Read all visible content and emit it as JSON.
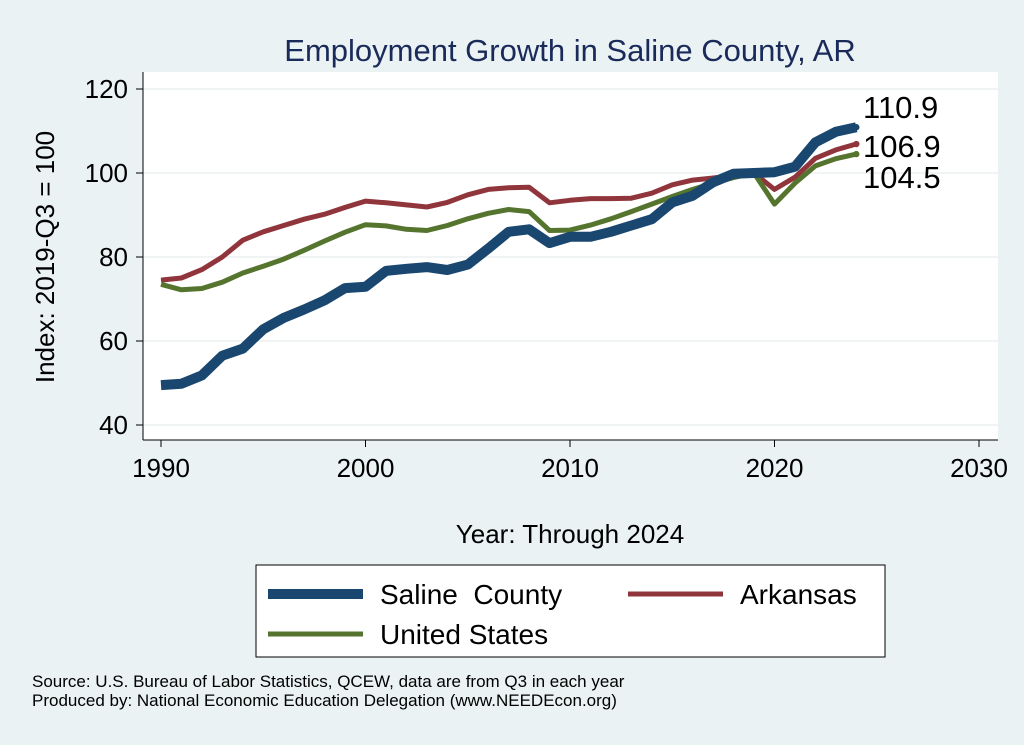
{
  "chart_data": {
    "type": "line",
    "title": "Employment Growth in Saline County, AR",
    "xlabel": "Year: Through 2024",
    "ylabel": "Index: 2019-Q3 = 100",
    "xlim": [
      1990,
      2030
    ],
    "ylim": [
      40,
      120
    ],
    "xticks": [
      1990,
      2000,
      2010,
      2020,
      2030
    ],
    "yticks": [
      40,
      60,
      80,
      100,
      120
    ],
    "grid": true,
    "legend_position": "bottom",
    "series": [
      {
        "name": "Saline  County",
        "color": "#1a476f",
        "end_label": "110.9",
        "x": [
          1990,
          1991,
          1992,
          1993,
          1994,
          1995,
          1996,
          1997,
          1998,
          1999,
          2000,
          2001,
          2002,
          2003,
          2004,
          2005,
          2006,
          2007,
          2008,
          2009,
          2010,
          2011,
          2012,
          2013,
          2014,
          2015,
          2016,
          2017,
          2018,
          2019,
          2020,
          2021,
          2022,
          2023,
          2024
        ],
        "values": [
          49.5,
          49.8,
          51.8,
          56.5,
          58.2,
          62.8,
          65.5,
          67.5,
          69.7,
          72.6,
          72.9,
          76.7,
          77.2,
          77.6,
          76.9,
          78.2,
          82.0,
          86.0,
          86.6,
          83.3,
          84.8,
          84.8,
          86.0,
          87.5,
          89.0,
          93.0,
          94.6,
          97.8,
          99.8,
          100.0,
          100.2,
          101.5,
          107.3,
          109.8,
          110.9
        ]
      },
      {
        "name": "Arkansas",
        "color": "#90353b",
        "end_label": "106.9",
        "x": [
          1990,
          1991,
          1992,
          1993,
          1994,
          1995,
          1996,
          1997,
          1998,
          1999,
          2000,
          2001,
          2002,
          2003,
          2004,
          2005,
          2006,
          2007,
          2008,
          2009,
          2010,
          2011,
          2012,
          2013,
          2014,
          2015,
          2016,
          2017,
          2018,
          2019,
          2020,
          2021,
          2022,
          2023,
          2024
        ],
        "values": [
          74.5,
          75.0,
          77.0,
          80.0,
          84.0,
          86.0,
          87.5,
          89.0,
          90.2,
          91.8,
          93.3,
          92.9,
          92.4,
          91.9,
          93.0,
          94.8,
          96.1,
          96.5,
          96.6,
          92.9,
          93.5,
          93.9,
          93.9,
          94.0,
          95.2,
          97.2,
          98.3,
          98.8,
          99.4,
          100.0,
          96.1,
          99.0,
          103.5,
          105.5,
          106.9
        ]
      },
      {
        "name": "United States",
        "color": "#55752f",
        "end_label": "104.5",
        "x": [
          1990,
          1991,
          1992,
          1993,
          1994,
          1995,
          1996,
          1997,
          1998,
          1999,
          2000,
          2001,
          2002,
          2003,
          2004,
          2005,
          2006,
          2007,
          2008,
          2009,
          2010,
          2011,
          2012,
          2013,
          2014,
          2015,
          2016,
          2017,
          2018,
          2019,
          2020,
          2021,
          2022,
          2023,
          2024
        ],
        "values": [
          73.5,
          72.2,
          72.5,
          74.0,
          76.2,
          77.8,
          79.5,
          81.6,
          83.8,
          85.9,
          87.7,
          87.4,
          86.6,
          86.3,
          87.5,
          89.1,
          90.4,
          91.3,
          90.8,
          86.3,
          86.4,
          87.6,
          89.1,
          90.8,
          92.6,
          94.4,
          96.1,
          97.6,
          98.9,
          100.0,
          92.6,
          97.6,
          101.7,
          103.4,
          104.5
        ]
      }
    ]
  },
  "footer": {
    "source": "Source: U.S. Bureau of Labor Statistics, QCEW, data are from Q3 in each year",
    "producer": "Produced by: National Economic Education Delegation (www.NEEDEcon.org)"
  }
}
